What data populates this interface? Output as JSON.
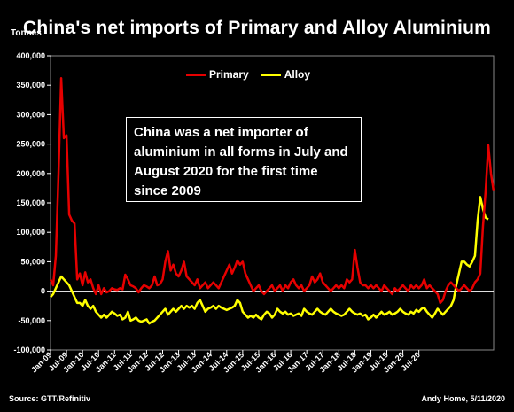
{
  "chart_data": {
    "type": "line",
    "title": "China's net imports of Primary and Alloy Aluminium",
    "ylabel": "Tonnes",
    "ylim": [
      -100000,
      400000
    ],
    "yticks": [
      "400,000",
      "350,000",
      "300,000",
      "250,000",
      "200,000",
      "150,000",
      "100,000",
      "50,000",
      "0",
      "-50,000",
      "-100,000"
    ],
    "ytick_values": [
      400000,
      350000,
      300000,
      250000,
      200000,
      150000,
      100000,
      50000,
      0,
      -50000,
      -100000
    ],
    "xticks": [
      "Jan-09",
      "Jul-09",
      "Jan-10",
      "Jul-10",
      "Jan-11",
      "Jul-11",
      "Jan-12",
      "Jul-12",
      "Jan-13",
      "Jul-13",
      "Jan-14",
      "Jul-14",
      "Jan-15",
      "Jul-15",
      "Jan-16",
      "Jul-16",
      "Jan-17",
      "Jul-17",
      "Jan-18",
      "Jul-18",
      "Jan-19",
      "Jul-19",
      "Jan-20",
      "Jul-20"
    ],
    "x_start": "Jan-09",
    "x_end": "Sep-20",
    "legend": "top-left",
    "annotation": "China was a net importer of aluminium in all forms in July and August 2020 for the first time since 2009",
    "series": [
      {
        "name": "Primary",
        "color": "#e60000",
        "values": [
          20000,
          10000,
          60000,
          200000,
          362000,
          260000,
          265000,
          130000,
          120000,
          115000,
          20000,
          30000,
          10000,
          32000,
          15000,
          20000,
          5000,
          -5000,
          10000,
          -5000,
          5000,
          -2000,
          0,
          5000,
          3000,
          2000,
          5000,
          3000,
          28000,
          20000,
          10000,
          8000,
          5000,
          -2000,
          5000,
          10000,
          8000,
          5000,
          10000,
          25000,
          10000,
          12000,
          20000,
          50000,
          68000,
          35000,
          45000,
          30000,
          25000,
          35000,
          50000,
          25000,
          20000,
          15000,
          10000,
          20000,
          5000,
          10000,
          15000,
          5000,
          10000,
          15000,
          10000,
          5000,
          15000,
          25000,
          35000,
          45000,
          30000,
          40000,
          52000,
          45000,
          50000,
          30000,
          20000,
          10000,
          0,
          5000,
          10000,
          0,
          -5000,
          0,
          5000,
          10000,
          0,
          5000,
          10000,
          0,
          10000,
          5000,
          15000,
          20000,
          10000,
          5000,
          10000,
          0,
          5000,
          10000,
          25000,
          15000,
          20000,
          30000,
          15000,
          10000,
          5000,
          0,
          5000,
          10000,
          5000,
          10000,
          5000,
          20000,
          15000,
          20000,
          70000,
          40000,
          15000,
          10000,
          10000,
          5000,
          10000,
          5000,
          10000,
          5000,
          0,
          10000,
          5000,
          0,
          -5000,
          5000,
          0,
          5000,
          10000,
          5000,
          0,
          10000,
          5000,
          10000,
          5000,
          10000,
          20000,
          5000,
          10000,
          5000,
          0,
          -5000,
          -20000,
          -15000,
          0,
          10000,
          15000,
          10000,
          5000,
          0,
          5000,
          10000,
          5000,
          0,
          5000,
          15000,
          20000,
          30000,
          110000,
          170000,
          248000,
          200000,
          170000
        ]
      },
      {
        "name": "Alloy",
        "color": "#ffff00",
        "values": [
          -10000,
          -5000,
          5000,
          15000,
          25000,
          20000,
          15000,
          10000,
          0,
          -10000,
          -20000,
          -20000,
          -25000,
          -15000,
          -25000,
          -30000,
          -25000,
          -35000,
          -40000,
          -45000,
          -40000,
          -45000,
          -40000,
          -35000,
          -38000,
          -42000,
          -40000,
          -48000,
          -45000,
          -35000,
          -50000,
          -48000,
          -45000,
          -50000,
          -52000,
          -50000,
          -48000,
          -55000,
          -52000,
          -50000,
          -45000,
          -40000,
          -35000,
          -30000,
          -40000,
          -35000,
          -30000,
          -35000,
          -30000,
          -25000,
          -30000,
          -25000,
          -28000,
          -25000,
          -30000,
          -20000,
          -15000,
          -25000,
          -35000,
          -30000,
          -28000,
          -25000,
          -30000,
          -25000,
          -28000,
          -30000,
          -32000,
          -30000,
          -28000,
          -25000,
          -15000,
          -20000,
          -35000,
          -40000,
          -45000,
          -42000,
          -45000,
          -40000,
          -45000,
          -48000,
          -40000,
          -35000,
          -38000,
          -45000,
          -40000,
          -30000,
          -35000,
          -38000,
          -35000,
          -40000,
          -38000,
          -42000,
          -40000,
          -38000,
          -42000,
          -30000,
          -35000,
          -38000,
          -40000,
          -35000,
          -30000,
          -35000,
          -38000,
          -40000,
          -35000,
          -30000,
          -35000,
          -38000,
          -40000,
          -42000,
          -40000,
          -35000,
          -30000,
          -35000,
          -38000,
          -40000,
          -38000,
          -42000,
          -40000,
          -48000,
          -45000,
          -40000,
          -45000,
          -40000,
          -35000,
          -40000,
          -38000,
          -35000,
          -40000,
          -38000,
          -35000,
          -30000,
          -35000,
          -38000,
          -40000,
          -35000,
          -38000,
          -32000,
          -35000,
          -30000,
          -28000,
          -35000,
          -40000,
          -45000,
          -38000,
          -30000,
          -35000,
          -40000,
          -35000,
          -30000,
          -25000,
          -15000,
          10000,
          30000,
          50000,
          50000,
          45000,
          42000,
          50000,
          60000,
          120000,
          160000,
          140000,
          125000,
          122000
        ]
      }
    ]
  },
  "source": "Source: GTT/Refinitiv",
  "credit": "Andy Home, 5/11/2020"
}
